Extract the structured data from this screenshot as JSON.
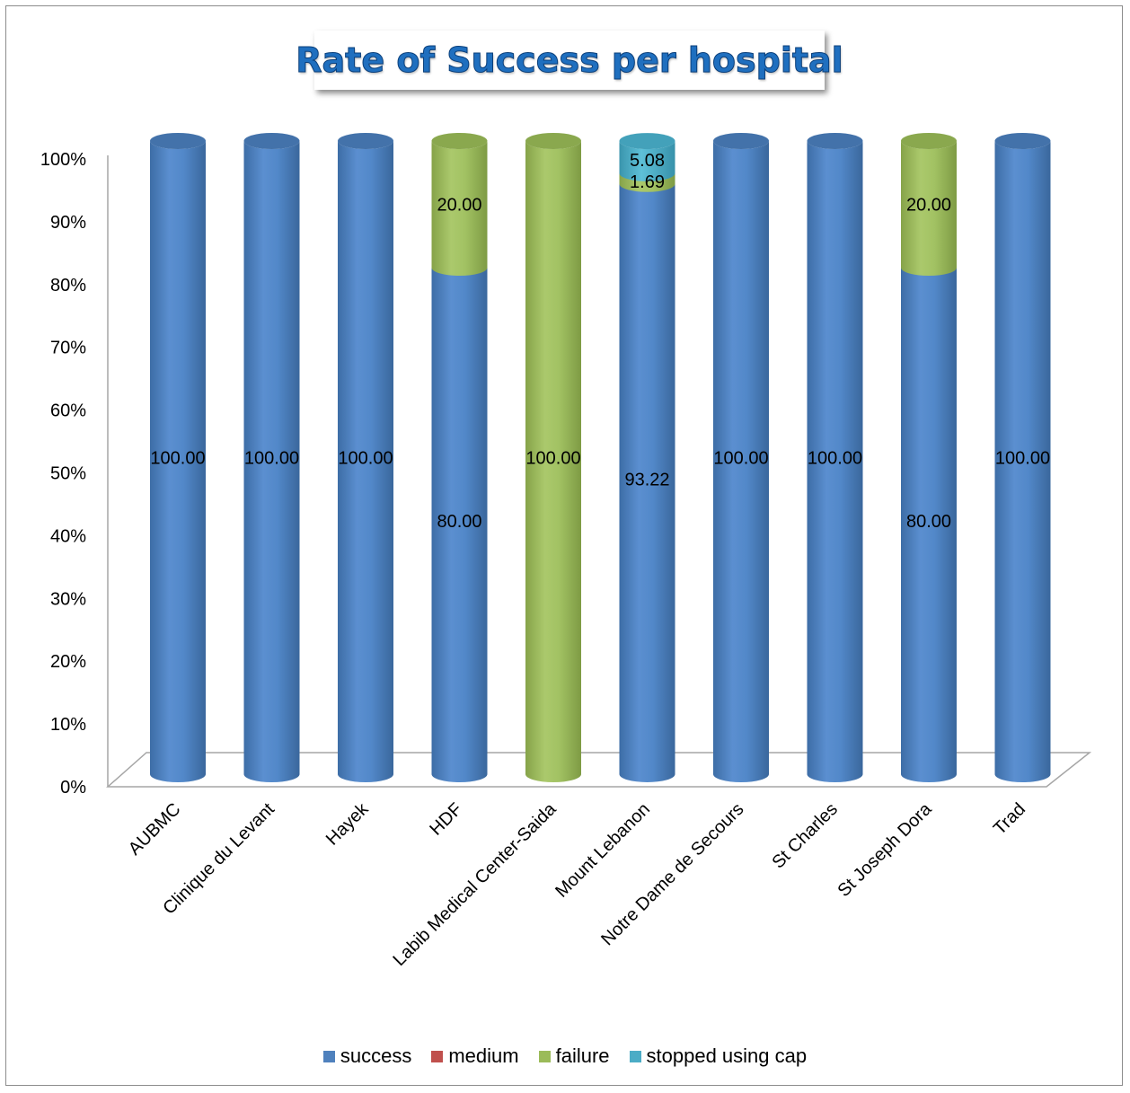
{
  "chart_data": {
    "type": "bar",
    "stacked": true,
    "title": "Rate of Success per hospital",
    "xlabel": "",
    "ylabel": "",
    "ylim": [
      0,
      100
    ],
    "y_ticks": [
      "0%",
      "10%",
      "20%",
      "30%",
      "40%",
      "50%",
      "60%",
      "70%",
      "80%",
      "90%",
      "100%"
    ],
    "categories": [
      "AUBMC",
      "Clinique du Levant",
      "Hayek",
      "HDF",
      "Labib Medical Center-Saida",
      "Mount Lebanon",
      "Notre Dame de Secours",
      "St Charles",
      "St Joseph Dora",
      "Trad"
    ],
    "series": [
      {
        "name": "success",
        "color": "#4f81bd",
        "values": [
          100,
          100,
          100,
          80,
          0,
          93.22,
          100,
          100,
          80,
          100
        ],
        "labels": [
          "100.00",
          "100.00",
          "100.00",
          "80.00",
          "",
          "93.22",
          "100.00",
          "100.00",
          "80.00",
          "100.00"
        ]
      },
      {
        "name": "medium",
        "color": "#c0504d",
        "values": [
          0,
          0,
          0,
          0,
          0,
          0,
          0,
          0,
          0,
          0
        ],
        "labels": [
          "",
          "",
          "",
          "",
          "",
          "",
          "",
          "",
          "",
          ""
        ]
      },
      {
        "name": "failure",
        "color": "#9bbb59",
        "values": [
          0,
          0,
          0,
          20,
          100,
          1.69,
          0,
          0,
          20,
          0
        ],
        "labels": [
          "",
          "",
          "",
          "20.00",
          "100.00",
          "1.69",
          "",
          "",
          "20.00",
          ""
        ]
      },
      {
        "name": "stopped using cap",
        "color": "#4bacc6",
        "values": [
          0,
          0,
          0,
          0,
          0,
          5.08,
          0,
          0,
          0,
          0
        ],
        "labels": [
          "",
          "",
          "",
          "",
          "",
          "5.08",
          "",
          "",
          "",
          ""
        ]
      }
    ],
    "grid": false,
    "legend_position": "bottom",
    "style": "3d-cylinder"
  }
}
